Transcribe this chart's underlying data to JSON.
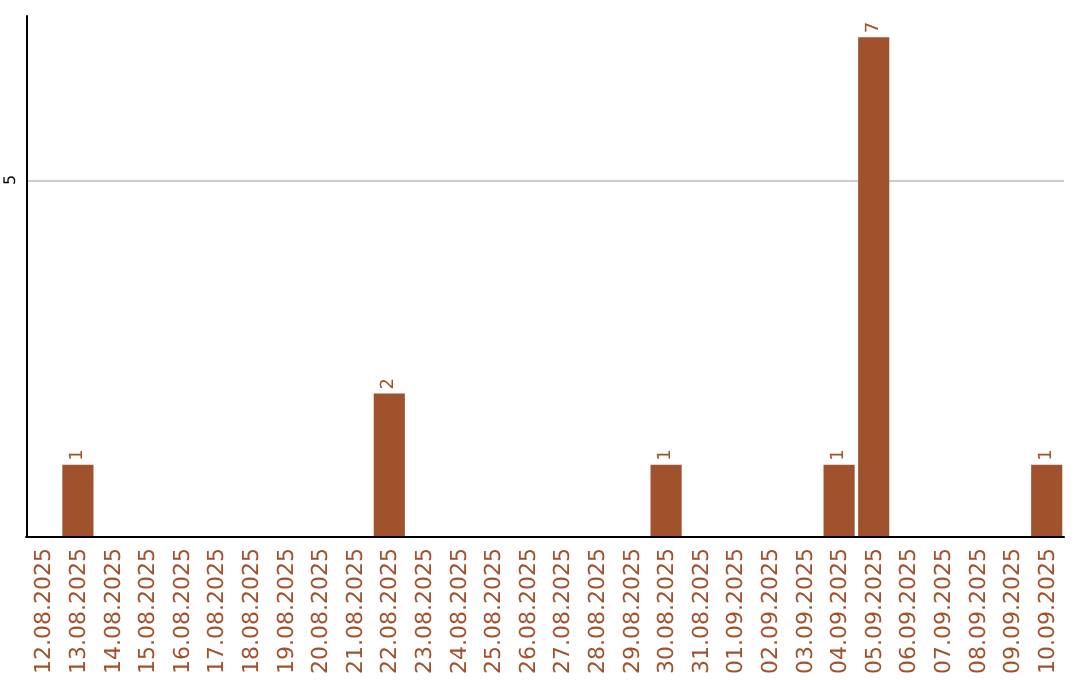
{
  "chart_data": {
    "type": "bar",
    "categories": [
      "12.08.2025",
      "13.08.2025",
      "14.08.2025",
      "15.08.2025",
      "16.08.2025",
      "17.08.2025",
      "18.08.2025",
      "19.08.2025",
      "20.08.2025",
      "21.08.2025",
      "22.08.2025",
      "23.08.2025",
      "24.08.2025",
      "25.08.2025",
      "26.08.2025",
      "27.08.2025",
      "28.08.2025",
      "29.08.2025",
      "30.08.2025",
      "31.08.2025",
      "01.09.2025",
      "02.09.2025",
      "03.09.2025",
      "04.09.2025",
      "05.09.2025",
      "06.09.2025",
      "07.09.2025",
      "08.09.2025",
      "09.09.2025",
      "10.09.2025"
    ],
    "values": [
      0,
      1,
      0,
      0,
      0,
      0,
      0,
      0,
      0,
      0,
      2,
      0,
      0,
      0,
      0,
      0,
      0,
      0,
      1,
      0,
      0,
      0,
      0,
      1,
      7,
      0,
      0,
      0,
      0,
      1
    ],
    "value_labels": [
      null,
      "1",
      null,
      null,
      null,
      null,
      null,
      null,
      null,
      null,
      "2",
      null,
      null,
      null,
      null,
      null,
      null,
      null,
      "1",
      null,
      null,
      null,
      null,
      "1",
      "7",
      null,
      null,
      null,
      null,
      "1"
    ],
    "color": "#a0522d",
    "ylim": [
      0,
      7.3
    ],
    "yticks": [
      5
    ],
    "grid": "y"
  }
}
